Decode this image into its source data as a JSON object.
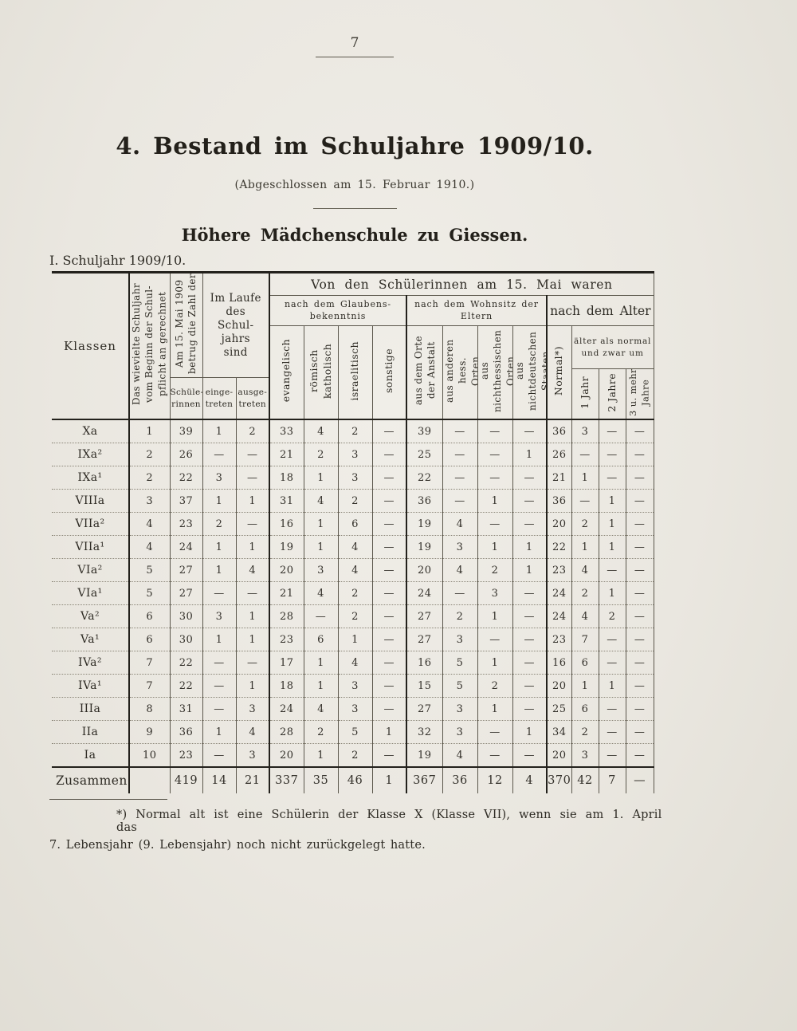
{
  "colors": {
    "paper": "#eae7e0",
    "ink": "#23201a",
    "rule": "#5b574c"
  },
  "page": {
    "number": "7"
  },
  "header": {
    "title": "4. Bestand im Schuljahre 1909/10.",
    "subtitle": "(Abgeschlossen am 15. Februar 1910.)",
    "school": "Höhere Mädchenschule zu Giessen.",
    "section_label": "I. Schuljahr 1909/10."
  },
  "table": {
    "col_headers": {
      "klassen": "Klassen",
      "schuljahr_vert": "Das wievielte Schuljahr\nvom Beginn der Schul-\npflicht an gerechnet",
      "zahl_vert": "Am 15. Mai 1909\nbetrug die Zahl der",
      "zahl_sub": "Schüle-\nrinnen",
      "im_laufe": "Im Laufe\ndes\nSchul-\njahrs\nsind",
      "eingetreten": "einge-\ntreten",
      "ausgetreten": "ausge-\ntreten",
      "span_main": "Von den Schülerinnen am 15. Mai waren",
      "glaubens": "nach dem Glaubens-\nbekenntnis",
      "wohnsitz": "nach dem Wohnsitz der\nEltern",
      "alter": "nach dem Alter",
      "aelter": "älter als normal\nund zwar um",
      "glaubens_cols": [
        "evangelisch",
        "römisch katholisch",
        "israelitisch",
        "sonstige"
      ],
      "wohnsitz_cols": [
        "aus dem Orte\nder Anstalt",
        "aus anderen hess.\nOrten",
        "aus nichthessischen\nOrten",
        "aus nichtdeutschen\nStaaten"
      ],
      "normal": "Normal*)",
      "alter_cols": [
        "1 Jahr",
        "2 Jahre",
        "3 u. mehr Jahre"
      ]
    },
    "rows": [
      {
        "klasse": "Xa",
        "values": [
          "1",
          "39",
          "1",
          "2",
          "33",
          "4",
          "2",
          "—",
          "39",
          "—",
          "—",
          "—",
          "36",
          "3",
          "—",
          "—"
        ]
      },
      {
        "klasse": "IXa²",
        "values": [
          "2",
          "26",
          "—",
          "—",
          "21",
          "2",
          "3",
          "—",
          "25",
          "—",
          "—",
          "1",
          "26",
          "—",
          "—",
          "—"
        ]
      },
      {
        "klasse": "IXa¹",
        "values": [
          "2",
          "22",
          "3",
          "—",
          "18",
          "1",
          "3",
          "—",
          "22",
          "—",
          "—",
          "—",
          "21",
          "1",
          "—",
          "—"
        ]
      },
      {
        "klasse": "VIIIa",
        "values": [
          "3",
          "37",
          "1",
          "1",
          "31",
          "4",
          "2",
          "—",
          "36",
          "—",
          "1",
          "—",
          "36",
          "—",
          "1",
          "—"
        ]
      },
      {
        "klasse": "VIIa²",
        "values": [
          "4",
          "23",
          "2",
          "—",
          "16",
          "1",
          "6",
          "—",
          "19",
          "4",
          "—",
          "—",
          "20",
          "2",
          "1",
          "—"
        ]
      },
      {
        "klasse": "VIIa¹",
        "values": [
          "4",
          "24",
          "1",
          "1",
          "19",
          "1",
          "4",
          "—",
          "19",
          "3",
          "1",
          "1",
          "22",
          "1",
          "1",
          "—"
        ]
      },
      {
        "klasse": "VIa²",
        "values": [
          "5",
          "27",
          "1",
          "4",
          "20",
          "3",
          "4",
          "—",
          "20",
          "4",
          "2",
          "1",
          "23",
          "4",
          "—",
          "—"
        ]
      },
      {
        "klasse": "VIa¹",
        "values": [
          "5",
          "27",
          "—",
          "—",
          "21",
          "4",
          "2",
          "—",
          "24",
          "—",
          "3",
          "—",
          "24",
          "2",
          "1",
          "—"
        ]
      },
      {
        "klasse": "Va²",
        "values": [
          "6",
          "30",
          "3",
          "1",
          "28",
          "—",
          "2",
          "—",
          "27",
          "2",
          "1",
          "—",
          "24",
          "4",
          "2",
          "—"
        ]
      },
      {
        "klasse": "Va¹",
        "values": [
          "6",
          "30",
          "1",
          "1",
          "23",
          "6",
          "1",
          "—",
          "27",
          "3",
          "—",
          "—",
          "23",
          "7",
          "—",
          "—"
        ]
      },
      {
        "klasse": "IVa²",
        "values": [
          "7",
          "22",
          "—",
          "—",
          "17",
          "1",
          "4",
          "—",
          "16",
          "5",
          "1",
          "—",
          "16",
          "6",
          "—",
          "—"
        ]
      },
      {
        "klasse": "IVa¹",
        "values": [
          "7",
          "22",
          "—",
          "1",
          "18",
          "1",
          "3",
          "—",
          "15",
          "5",
          "2",
          "—",
          "20",
          "1",
          "1",
          "—"
        ]
      },
      {
        "klasse": "IIIa",
        "values": [
          "8",
          "31",
          "—",
          "3",
          "24",
          "4",
          "3",
          "—",
          "27",
          "3",
          "1",
          "—",
          "25",
          "6",
          "—",
          "—"
        ]
      },
      {
        "klasse": "IIa",
        "values": [
          "9",
          "36",
          "1",
          "4",
          "28",
          "2",
          "5",
          "1",
          "32",
          "3",
          "—",
          "1",
          "34",
          "2",
          "—",
          "—"
        ]
      },
      {
        "klasse": "Ia",
        "values": [
          "10",
          "23",
          "—",
          "3",
          "20",
          "1",
          "2",
          "—",
          "19",
          "4",
          "—",
          "—",
          "20",
          "3",
          "—",
          "—"
        ]
      }
    ],
    "total": {
      "label": "Zusammen",
      "values": [
        "",
        "419",
        "14",
        "21",
        "337",
        "35",
        "46",
        "1",
        "367",
        "36",
        "12",
        "4",
        "370",
        "42",
        "7",
        "—"
      ]
    }
  },
  "footnote": {
    "line1": "*) Normal alt ist eine Schülerin der Klasse X (Klasse VII), wenn sie am 1. April das",
    "line2": "7. Lebensjahr (9. Lebensjahr) noch nicht zurückgelegt hatte."
  }
}
